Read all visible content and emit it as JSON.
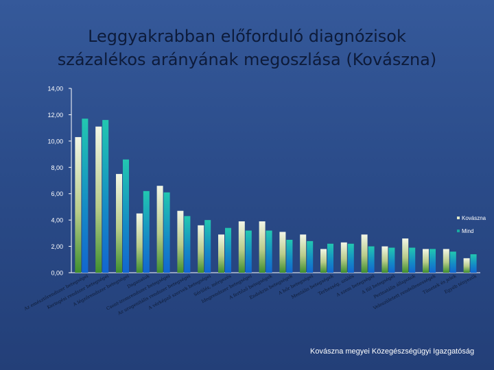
{
  "chart_data": {
    "type": "bar",
    "title_lines": [
      "Leggyakrabban előforduló diagnózisok",
      "százalékos arányának megoszlása (Kovászna)"
    ],
    "ylim": [
      0,
      14
    ],
    "yticks": [
      "0,00",
      "2,00",
      "4,00",
      "6,00",
      "8,00",
      "10,00",
      "12,00",
      "14,00"
    ],
    "grid": false,
    "legend_position": "right",
    "series": [
      {
        "name": "Kovászna",
        "color": "#dfe8c8",
        "values": [
          10.3,
          11.1,
          7.5,
          4.5,
          6.6,
          4.7,
          3.6,
          2.9,
          3.9,
          3.9,
          3.1,
          2.9,
          1.8,
          2.3,
          2.9,
          2.0,
          2.6,
          1.8,
          1.8,
          1.1
        ]
      },
      {
        "name": "Mind",
        "color": "#1aa9a0",
        "values": [
          11.7,
          11.6,
          8.6,
          6.2,
          6.1,
          4.3,
          4.0,
          3.4,
          3.2,
          3.2,
          2.5,
          2.4,
          2.2,
          2.2,
          2.0,
          1.9,
          1.9,
          1.8,
          1.6,
          1.4
        ]
      }
    ],
    "categories": [
      "Az emésztőrendszer betegségei",
      "Keringési rendszer betegségei",
      "A légzőrendszer betegségei",
      "Daganatok",
      "Csont-izomrendszer betegségei",
      "Az urogenitális rendszer betegségei",
      "A vérképző szervek betegségei",
      "Sérülés, mérgezés",
      "Idegrendszer betegségei",
      "A fertőző betegségek",
      "Endokrin betegségek",
      "A bőr betegségei",
      "Mentális betegségek",
      "Terhesség, szülés",
      "A szem betegségei",
      "A fül betegségei",
      "Perinatális állapotok",
      "Veleszületett rendellenességek",
      "Tünetek és jelek",
      "Egyéb tényezők"
    ]
  },
  "footer": "Kovászna megyei Közegészségügyi Igazgatóság"
}
